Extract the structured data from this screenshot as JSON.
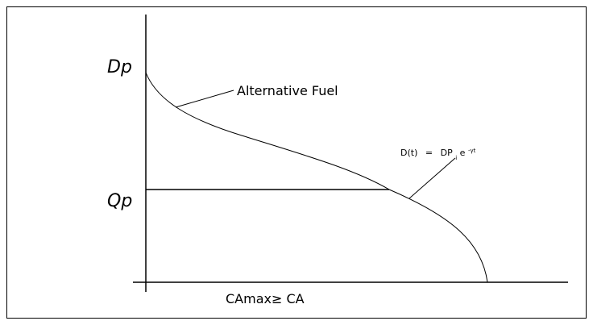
{
  "diagram": {
    "y_labels": {
      "top": "Dp",
      "middle": "Qp"
    },
    "curve_label": "Alternative Fuel",
    "formula": {
      "lhs": "D(t)",
      "eq": "=",
      "base": "DP",
      "subscript": "i",
      "exp_base": "e",
      "superscript": "-γt"
    },
    "x_label": "CAmax≥ CA"
  }
}
